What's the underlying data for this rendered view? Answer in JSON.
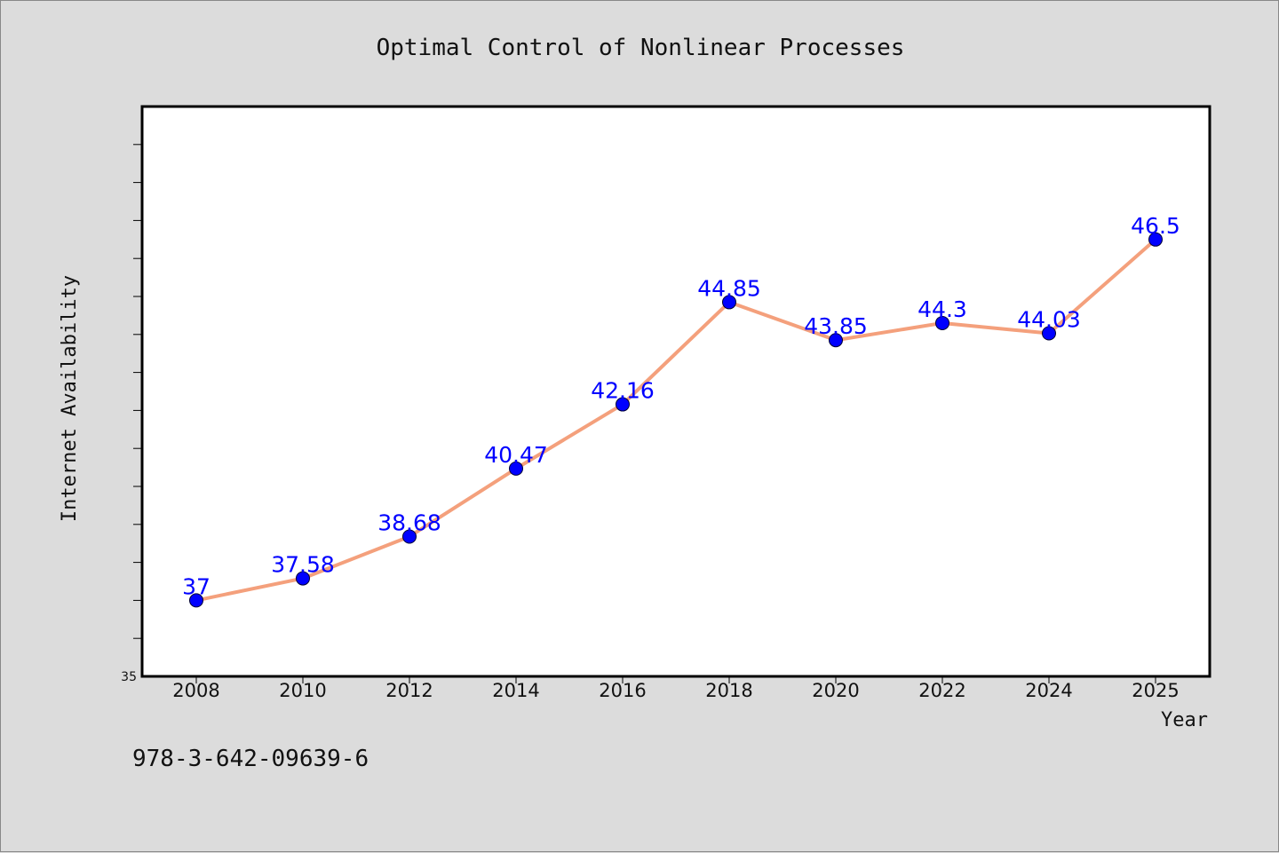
{
  "chart_data": {
    "type": "line",
    "title": "Optimal Control of Nonlinear Processes",
    "xlabel": "Year",
    "ylabel": "Internet Availability",
    "categories": [
      "2008",
      "2010",
      "2012",
      "2014",
      "2016",
      "2018",
      "2020",
      "2022",
      "2024",
      "2025"
    ],
    "series": [
      {
        "values": [
          37,
          37.58,
          38.68,
          40.47,
          42.16,
          44.85,
          43.85,
          44.3,
          44.03,
          46.5
        ],
        "labels": [
          "37",
          "37.58",
          "38.68",
          "40.47",
          "42.16",
          "44.85",
          "43.85",
          "44.3",
          "44.03",
          "46.5"
        ]
      }
    ],
    "ylim": [
      35,
      50
    ],
    "y_tick_label_shown": "35",
    "grid": false,
    "line_color": "#f4a07c",
    "marker_color": "#0000ff",
    "label_color": "#0000ff"
  },
  "footer": {
    "isbn": "978-3-642-09639-6"
  }
}
